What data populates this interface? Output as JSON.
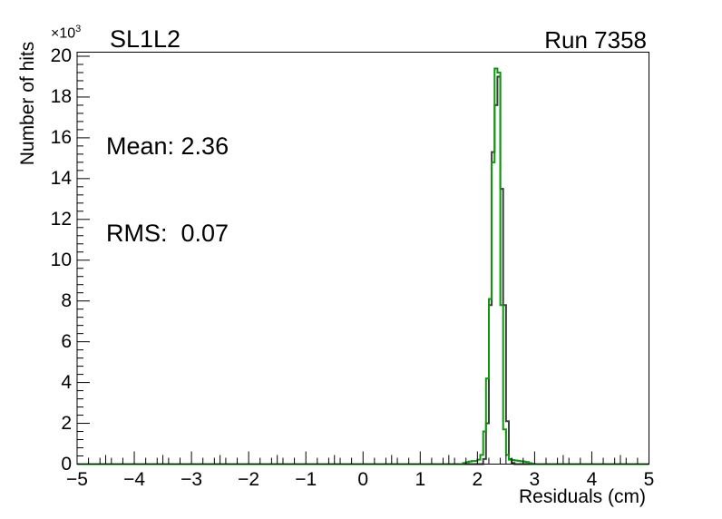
{
  "header": {
    "title": "SL1L2",
    "run": "Run 7358"
  },
  "stats": {
    "mean": "Mean: 2.36",
    "rms": "RMS:  0.07"
  },
  "axes": {
    "xlabel": "Residuals (cm)",
    "ylabel": "Number of hits",
    "y_multiplier_base": "×10",
    "y_multiplier_exp": "3"
  },
  "colors": {
    "frame": "#000000",
    "dark_series": "#3d3d3d",
    "green_series": "#0a9a0a",
    "background": "#ffffff"
  },
  "chart_data": {
    "type": "histogram",
    "title": "SL1L2",
    "annotation_run": "Run 7358",
    "xlabel": "Residuals (cm)",
    "ylabel": "Number of hits",
    "y_axis_multiplier": "×10³",
    "mean": 2.36,
    "rms": 0.07,
    "xlim": [
      -5,
      5
    ],
    "ylim_thousands": [
      0,
      20.2
    ],
    "x_tick_values": [
      -5,
      -4,
      -3,
      -2,
      -1,
      0,
      1,
      2,
      3,
      4,
      5
    ],
    "x_tick_labels": [
      "−5",
      "−4",
      "−3",
      "−2",
      "−1",
      "0",
      "1",
      "2",
      "3",
      "4",
      "5"
    ],
    "y_tick_values": [
      0,
      2,
      4,
      6,
      8,
      10,
      12,
      14,
      16,
      18,
      20
    ],
    "y_tick_labels": [
      "0",
      "2",
      "4",
      "6",
      "8",
      "10",
      "12",
      "14",
      "16",
      "18",
      "20"
    ],
    "x_minor_step": 0.2,
    "x_medium_step": 0.5,
    "y_minor_step": 0.4,
    "grid": false,
    "legend": false,
    "bin_width": 0.05,
    "series": [
      {
        "name": "residuals-histogram-dark",
        "color": "#3d3d3d",
        "bins_k": [
          [
            2.1,
            0.25
          ],
          [
            2.15,
            2.0
          ],
          [
            2.2,
            7.8
          ],
          [
            2.25,
            15.3
          ],
          [
            2.3,
            17.6
          ],
          [
            2.35,
            19.0
          ],
          [
            2.4,
            13.5
          ],
          [
            2.45,
            7.8
          ],
          [
            2.5,
            2.1
          ],
          [
            2.55,
            0.25
          ],
          [
            2.6,
            0.06
          ]
        ]
      },
      {
        "name": "residuals-histogram-green",
        "color": "#0a9a0a",
        "bins_k": [
          [
            1.75,
            0.06
          ],
          [
            1.8,
            0.1
          ],
          [
            1.85,
            0.13
          ],
          [
            1.9,
            0.15
          ],
          [
            1.95,
            0.15
          ],
          [
            2.0,
            0.22
          ],
          [
            2.05,
            0.45
          ],
          [
            2.1,
            1.6
          ],
          [
            2.15,
            4.2
          ],
          [
            2.2,
            8.1
          ],
          [
            2.25,
            14.8
          ],
          [
            2.3,
            19.4
          ],
          [
            2.35,
            19.2
          ],
          [
            2.4,
            7.8
          ],
          [
            2.45,
            1.7
          ],
          [
            2.5,
            0.45
          ],
          [
            2.55,
            0.22
          ],
          [
            2.6,
            0.2
          ],
          [
            2.65,
            0.18
          ],
          [
            2.7,
            0.16
          ],
          [
            2.75,
            0.14
          ],
          [
            2.8,
            0.12
          ],
          [
            2.85,
            0.1
          ],
          [
            2.9,
            0.05
          ],
          [
            2.95,
            0.02
          ]
        ]
      }
    ]
  }
}
